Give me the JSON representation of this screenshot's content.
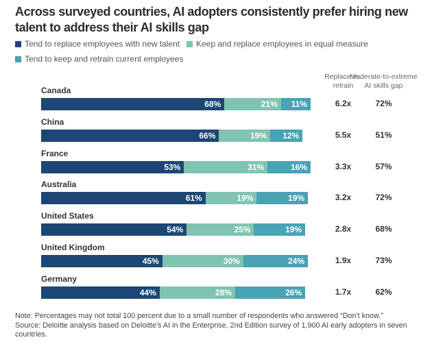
{
  "chart_data": {
    "type": "bar",
    "orientation": "horizontal-stacked",
    "title": "Across surveyed countries, AI adopters consistently prefer hiring new talent to address their AI skills gap",
    "categories": [
      "Canada",
      "China",
      "France",
      "Australia",
      "United States",
      "United Kingdom",
      "Germany"
    ],
    "series": [
      {
        "name": "Tend to replace employees with new talent",
        "color": "#1c4775",
        "values": [
          68,
          66,
          53,
          61,
          54,
          45,
          44
        ]
      },
      {
        "name": "Keep and replace employees in equal measure",
        "color": "#80c3b3",
        "values": [
          21,
          19,
          31,
          19,
          25,
          30,
          28
        ]
      },
      {
        "name": "Tend to keep and retrain current employees",
        "color": "#48a3b5",
        "values": [
          11,
          12,
          16,
          19,
          19,
          24,
          26
        ]
      }
    ],
    "extra_columns": [
      {
        "header": [
          "Replace vs.",
          "retrain"
        ],
        "values": [
          "6.2x",
          "5.5x",
          "3.3x",
          "3.2x",
          "2.8x",
          "1.9x",
          "1.7x"
        ]
      },
      {
        "header": [
          "Moderate-to-extreme",
          "AI skills gap"
        ],
        "values": [
          "72%",
          "51%",
          "57%",
          "72%",
          "68%",
          "73%",
          "62%"
        ]
      }
    ],
    "xlim": [
      0,
      100
    ],
    "legend_position": "top-left",
    "value_suffix": "%"
  },
  "note": "Note: Percentages may not total 100 percent due to a small number of respondents who answered “Don't know.”",
  "source": "Source: Deloitte analysis based on Deloitte’s AI in the Enterprise, 2nd Edition survey of 1,900 AI early adopters in seven countries."
}
